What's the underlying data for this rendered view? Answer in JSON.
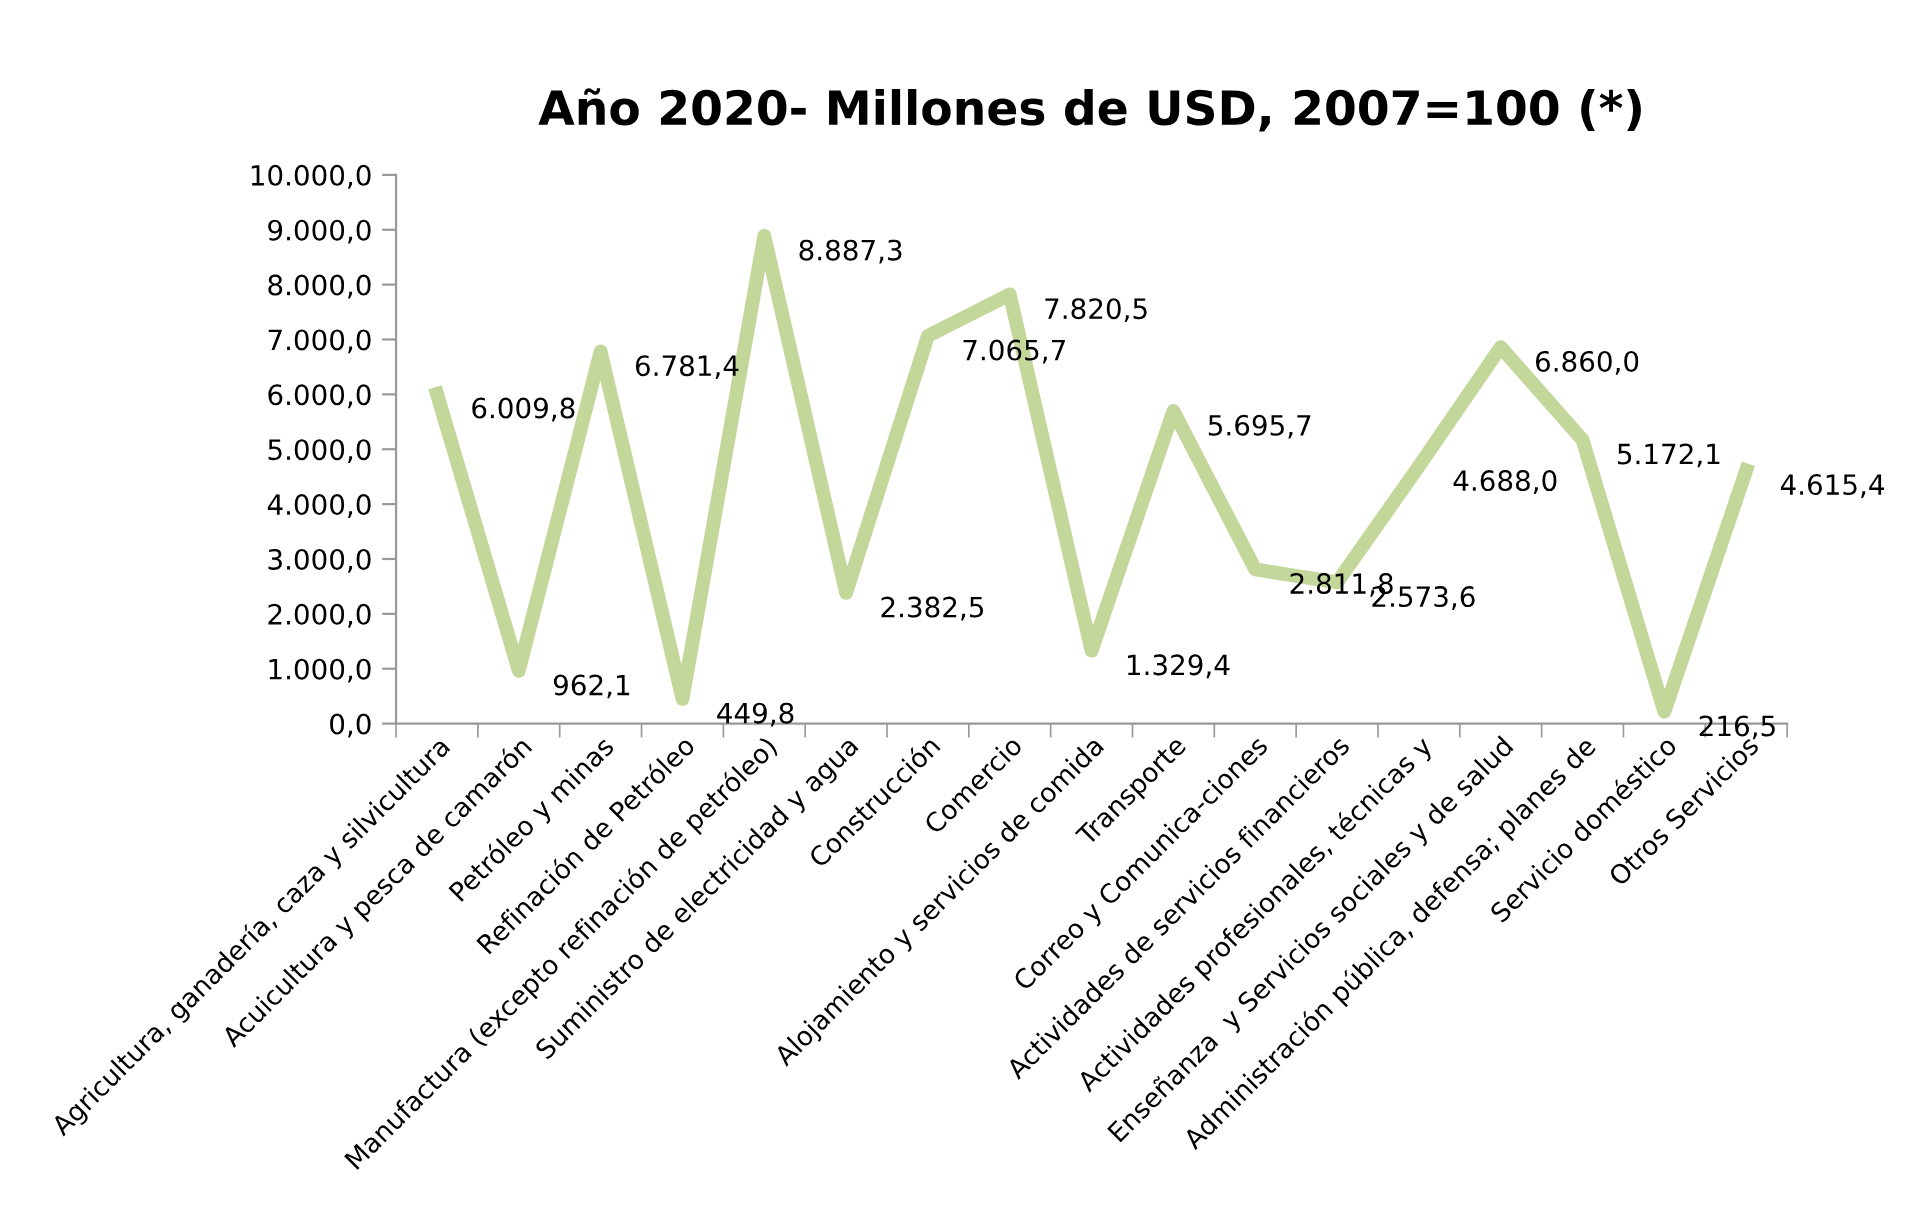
{
  "chart_data": {
    "type": "line",
    "title": "Año 2020- Millones de USD, 2007=100 (*)",
    "categories": [
      "Agricultura, ganadería, caza y silvicultura",
      "Acuicultura y pesca de camarón",
      "Petróleo y minas",
      "Refinación de Petróleo",
      "Manufactura (excepto refinación de petróleo)",
      "Suministro de electricidad y agua",
      "Construcción",
      "Comercio",
      "Alojamiento y servicios de comida",
      "Transporte",
      "Correo y Comunica-ciones",
      "Actividades de servicios financieros",
      "Actividades profesionales, técnicas y",
      "Enseñanza  y Servicios sociales y de salud",
      "Administración pública, defensa; planes de",
      "Servicio doméstico",
      "Otros Servicios"
    ],
    "series": [
      {
        "color": "#c4d79b",
        "values": [
          6009.8,
          962.1,
          6781.4,
          449.8,
          8887.3,
          2382.5,
          7065.7,
          7820.5,
          1329.4,
          5695.7,
          2811.8,
          2573.6,
          4688.0,
          6860.0,
          5172.1,
          216.5,
          4615.4
        ],
        "value_labels": [
          "6.009,8",
          "962,1",
          "6.781,4",
          "449,8",
          "8.887,3",
          "2.382,5",
          "7.065,7",
          "7.820,5",
          "1.329,4",
          "5.695,7",
          "2.811,8",
          "2.573,6",
          "4.688,0",
          "6.860,0",
          "5.172,1",
          "216,5",
          "4.615,4"
        ]
      }
    ],
    "ylim": [
      0,
      10000
    ],
    "yticks": [
      {
        "value": 0,
        "label": "0,0"
      },
      {
        "value": 1000,
        "label": "1.000,0"
      },
      {
        "value": 2000,
        "label": "2.000,0"
      },
      {
        "value": 3000,
        "label": "3.000,0"
      },
      {
        "value": 4000,
        "label": "4.000,0"
      },
      {
        "value": 5000,
        "label": "5.000,0"
      },
      {
        "value": 6000,
        "label": "6.000,0"
      },
      {
        "value": 7000,
        "label": "7.000,0"
      },
      {
        "value": 8000,
        "label": "8.000,0"
      },
      {
        "value": 9000,
        "label": "9.000,0"
      },
      {
        "value": 10000,
        "label": "10.000,0"
      }
    ],
    "grid": false,
    "legend": false,
    "marker": "none",
    "line_style": "solid"
  }
}
